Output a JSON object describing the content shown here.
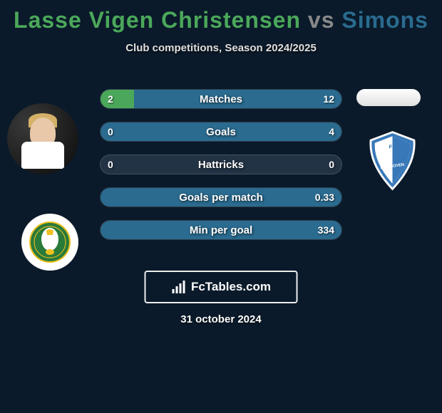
{
  "title": {
    "player1": "Lasse Vigen Christensen",
    "vs": "vs",
    "player2": "Simons"
  },
  "subtitle": "Club competitions, Season 2024/2025",
  "colors": {
    "player1": "#4ba85a",
    "player2": "#2a6b8f",
    "bg": "#0a1a2a",
    "text": "#ffffff"
  },
  "stats": [
    {
      "label": "Matches",
      "left_val": "2",
      "right_val": "12",
      "left_pct": 14,
      "right_pct": 86
    },
    {
      "label": "Goals",
      "left_val": "0",
      "right_val": "4",
      "left_pct": 0,
      "right_pct": 100
    },
    {
      "label": "Hattricks",
      "left_val": "0",
      "right_val": "0",
      "left_pct": 0,
      "right_pct": 0
    },
    {
      "label": "Goals per match",
      "left_val": "",
      "right_val": "0.33",
      "left_pct": 0,
      "right_pct": 100
    },
    {
      "label": "Min per goal",
      "left_val": "",
      "right_val": "334",
      "left_pct": 0,
      "right_pct": 100
    }
  ],
  "branding": "FcTables.com",
  "date": "31 october 2024",
  "club1_name": "ADO Den Haag",
  "club2_name": "FC Eindhoven"
}
